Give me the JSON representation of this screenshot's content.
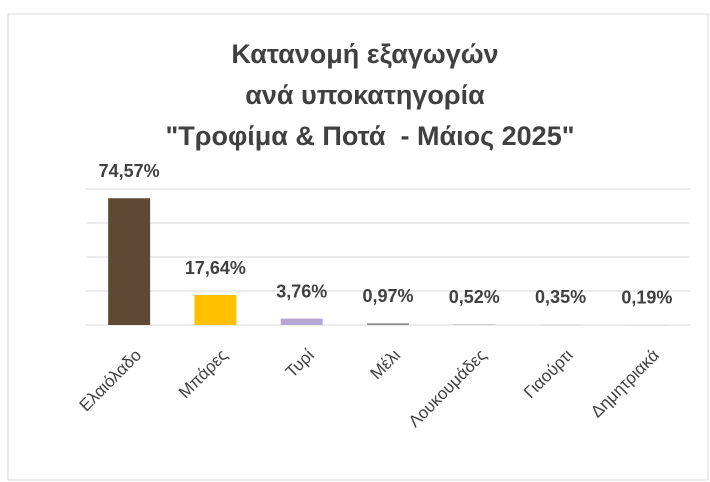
{
  "chart_data": {
    "type": "bar",
    "title": [
      "Κατανομή εξαγωγών",
      "ανά υποκατηγορία",
      "\"Τροφίμα & Ποτά  - Μάιος 2025\""
    ],
    "categories": [
      "Ελαιόλαδο",
      "Μπάρες",
      "Τυρί",
      "Μέλι",
      "Λουκουμάδες",
      "Γιαούρτι",
      "Δημητριακά"
    ],
    "values": [
      74.57,
      17.64,
      3.76,
      0.97,
      0.52,
      0.35,
      0.19
    ],
    "value_labels": [
      "74,57%",
      "17,64%",
      "3,76%",
      "0,97%",
      "0,52%",
      "0,35%",
      "0,19%"
    ],
    "colors": [
      "#5e4a34",
      "#ffc000",
      "#b4a7d6",
      "#8a8a8a",
      "#c8c8c8",
      "#d0d0d0",
      "#d8d8d8"
    ],
    "ylim": [
      0,
      80
    ],
    "yticks": [
      0,
      20,
      40,
      60,
      80
    ],
    "grid": true
  }
}
